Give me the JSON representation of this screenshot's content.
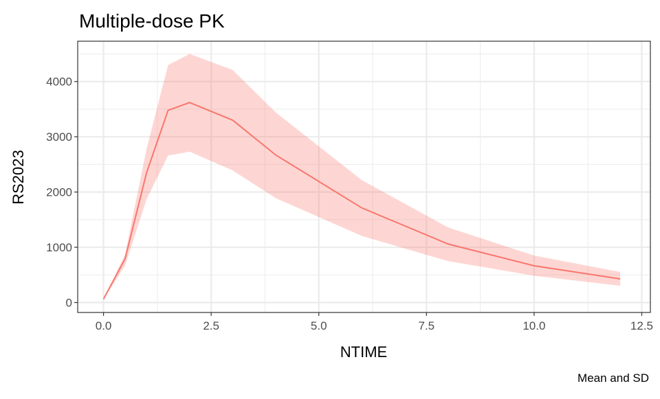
{
  "chart_data": {
    "type": "line",
    "title": "Multiple-dose PK",
    "xlabel": "NTIME",
    "ylabel": "RS2023",
    "caption": "Mean and SD",
    "xlim": [
      -0.6,
      12.7
    ],
    "ylim": [
      -180,
      4730
    ],
    "x_ticks": [
      0,
      2.5,
      5,
      7.5,
      10,
      12.5
    ],
    "x_tick_labels": [
      "0.0",
      "2.5",
      "5.0",
      "7.5",
      "10.0",
      "12.5"
    ],
    "y_ticks": [
      0,
      1000,
      2000,
      3000,
      4000
    ],
    "y_tick_labels": [
      "0",
      "1000",
      "2000",
      "3000",
      "4000"
    ],
    "grid": true,
    "line_color": "#F8766D",
    "ribbon_color": "#F8766D",
    "series": [
      {
        "name": "Mean",
        "x": [
          0,
          0.5,
          1,
          1.5,
          2,
          3,
          4,
          6,
          8,
          10,
          12
        ],
        "mean": [
          62,
          790,
          2350,
          3480,
          3620,
          3300,
          2670,
          1712,
          1060,
          665,
          428
        ],
        "upper": [
          62,
          870,
          2785,
          4300,
          4500,
          4210,
          3440,
          2215,
          1360,
          850,
          552
        ],
        "lower": [
          62,
          665,
          1870,
          2660,
          2730,
          2390,
          1890,
          1205,
          750,
          485,
          303
        ]
      }
    ]
  }
}
